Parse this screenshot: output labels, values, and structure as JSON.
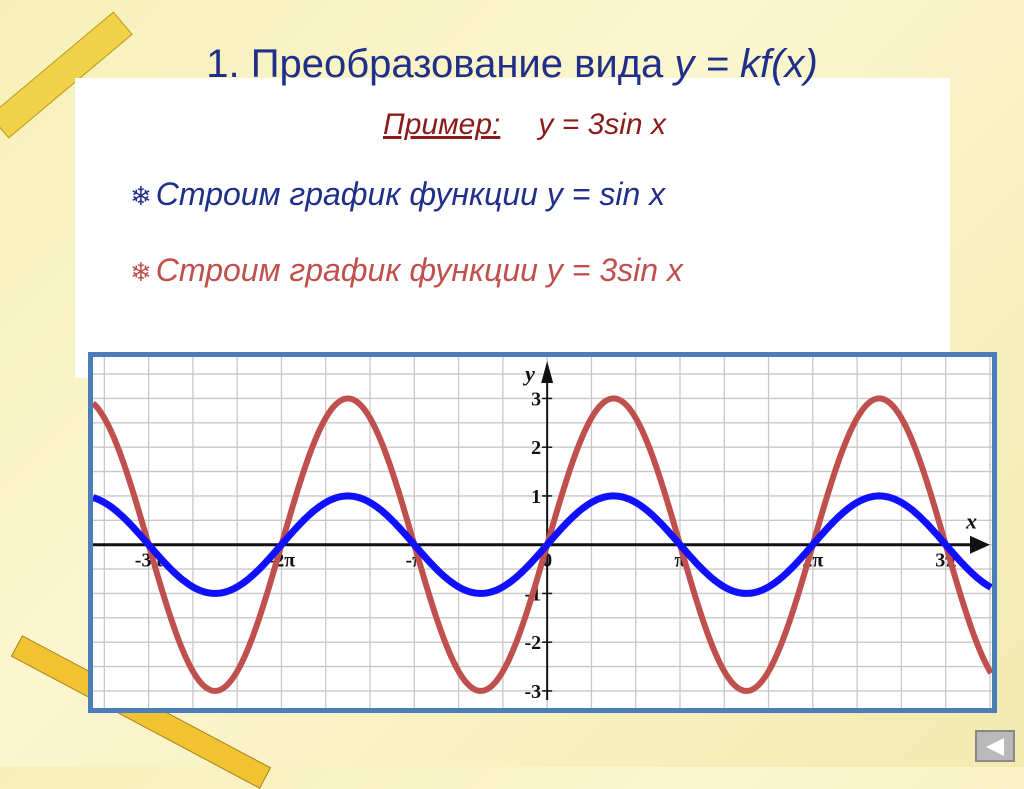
{
  "title": {
    "prefix": "1. Преобразование вида ",
    "formula": "y = kf(x)"
  },
  "example": {
    "label": "Пример:",
    "formula": "y = 3sin x"
  },
  "bullets": [
    {
      "icon": "snowflake-icon",
      "glyph": "❄",
      "text": "Строим график функции  y = sin x",
      "color": "#1f2f8a"
    },
    {
      "icon": "snowflake-icon",
      "glyph": "❄",
      "text": "Строим график функции  y = 3sin x",
      "color": "#c0504d"
    }
  ],
  "chart_data": {
    "type": "line",
    "xlabel": "x",
    "ylabel": "y",
    "xlim": [
      -10.74,
      10.52
    ],
    "ylim": [
      -3.35,
      3.85
    ],
    "grid": true,
    "x_ticks": [
      {
        "value": -9.4248,
        "label": "-3π"
      },
      {
        "value": -6.2832,
        "label": "-2π"
      },
      {
        "value": -3.1416,
        "label": "-π"
      },
      {
        "value": 0,
        "label": "0"
      },
      {
        "value": 3.1416,
        "label": "π"
      },
      {
        "value": 6.2832,
        "label": "2π"
      },
      {
        "value": 9.4248,
        "label": "3π"
      }
    ],
    "y_ticks": [
      {
        "value": 3,
        "label": "3"
      },
      {
        "value": 2,
        "label": "2"
      },
      {
        "value": 1,
        "label": "1"
      },
      {
        "value": -1,
        "label": "-1"
      },
      {
        "value": -2,
        "label": "-2"
      },
      {
        "value": -3,
        "label": "-3"
      }
    ],
    "series": [
      {
        "function": "y = sin x",
        "amplitude": 1,
        "color": "#1010ff"
      },
      {
        "function": "y = 3sin x",
        "amplitude": 3,
        "color": "#c0504d"
      }
    ]
  },
  "colors": {
    "frame": "#4a7ebb",
    "grid": "#c8c8c8"
  }
}
